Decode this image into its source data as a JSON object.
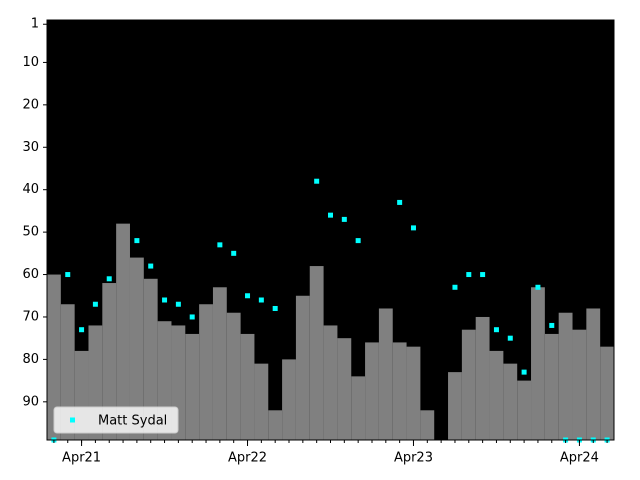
{
  "chart_data": {
    "type": "bar",
    "xlim": [
      0,
      41
    ],
    "ylim": [
      99,
      0
    ],
    "yticks": [
      1,
      10,
      20,
      30,
      40,
      50,
      60,
      70,
      80,
      90
    ],
    "xticks": [
      {
        "value": 2.5,
        "label": "Apr21"
      },
      {
        "value": 14.5,
        "label": "Apr22"
      },
      {
        "value": 26.5,
        "label": "Apr23"
      },
      {
        "value": 38.5,
        "label": "Apr24"
      }
    ],
    "background": "#000000",
    "bars": {
      "color": "#808080",
      "values": [
        60,
        67,
        78,
        72,
        62,
        48,
        56,
        61,
        71,
        72,
        74,
        67,
        63,
        69,
        74,
        81,
        92,
        80,
        65,
        58,
        72,
        75,
        84,
        76,
        68,
        76,
        77,
        92,
        null,
        83,
        73,
        70,
        78,
        81,
        85,
        63,
        74,
        69,
        73,
        68,
        77
      ]
    },
    "series": [
      {
        "name": "Matt Sydal",
        "color": "#00ffff",
        "values": [
          99,
          60,
          73,
          67,
          61,
          null,
          52,
          58,
          66,
          67,
          70,
          null,
          53,
          55,
          65,
          66,
          68,
          null,
          null,
          38,
          46,
          47,
          52,
          null,
          null,
          43,
          49,
          null,
          null,
          63,
          60,
          60,
          73,
          75,
          83,
          63,
          72,
          99,
          99,
          99,
          99
        ]
      }
    ],
    "legend": "lower left"
  }
}
